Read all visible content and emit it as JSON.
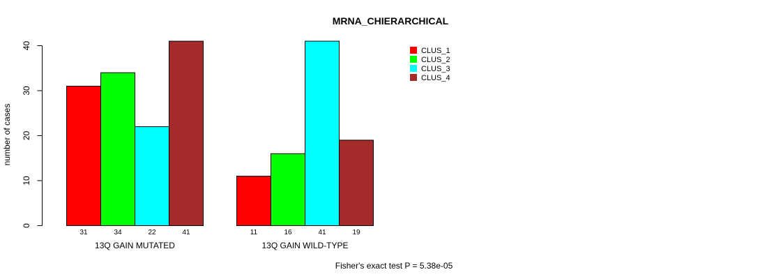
{
  "chart_data": {
    "type": "bar",
    "title": "MRNA_CHIERARCHICAL",
    "ylabel": "number of cases",
    "xlabel": "",
    "ylim": [
      0,
      40
    ],
    "yticks": [
      0,
      10,
      20,
      30,
      40
    ],
    "grid": false,
    "legend_position": "top-right",
    "groups": [
      "13Q GAIN MUTATED",
      "13Q GAIN WILD-TYPE"
    ],
    "series": [
      {
        "name": "CLUS_1",
        "color": "#ff0000",
        "values": [
          31,
          11
        ]
      },
      {
        "name": "CLUS_2",
        "color": "#00ff00",
        "values": [
          34,
          16
        ]
      },
      {
        "name": "CLUS_3",
        "color": "#00ffff",
        "values": [
          22,
          41
        ]
      },
      {
        "name": "CLUS_4",
        "color": "#a52a2a",
        "values": [
          41,
          19
        ]
      }
    ],
    "footnote": "Fisher's exact test P = 5.38e-05"
  }
}
